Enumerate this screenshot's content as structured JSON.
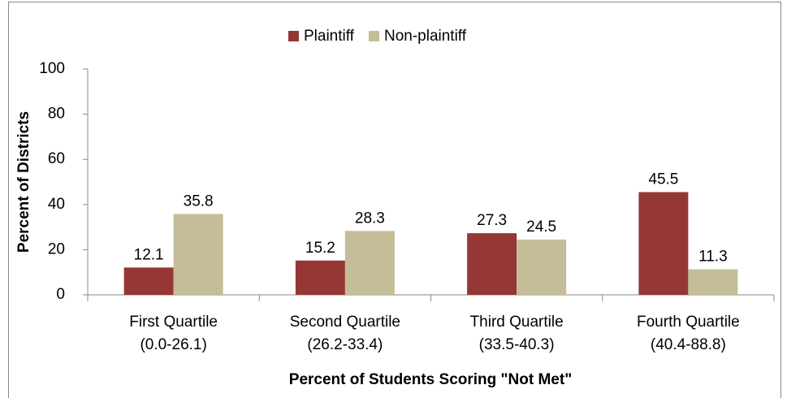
{
  "chart_data": {
    "type": "bar",
    "categories": [
      [
        "First Quartile",
        "(0.0-26.1)"
      ],
      [
        "Second Quartile",
        "(26.2-33.4)"
      ],
      [
        "Third Quartile",
        "(33.5-40.3)"
      ],
      [
        "Fourth Quartile",
        "(40.4-88.8)"
      ]
    ],
    "series": [
      {
        "name": "Plaintiff",
        "color": "#953735",
        "values": [
          12.1,
          15.2,
          27.3,
          45.5
        ]
      },
      {
        "name": "Non-plaintiff",
        "color": "#c4bd97",
        "values": [
          35.8,
          28.3,
          24.5,
          11.3
        ]
      }
    ],
    "ylim": [
      0,
      100
    ],
    "yticks": [
      0,
      20,
      40,
      60,
      80,
      100
    ],
    "y_label": "Percent of Districts",
    "x_label": "Percent of Students Scoring \"Not Met\"",
    "legend": "top"
  }
}
